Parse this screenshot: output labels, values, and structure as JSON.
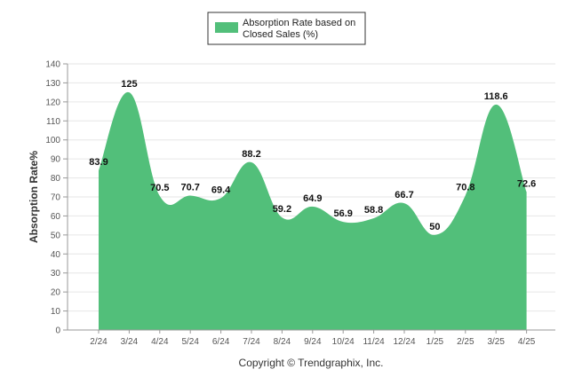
{
  "chart_data": {
    "type": "area",
    "categories": [
      "2/24",
      "3/24",
      "4/24",
      "5/24",
      "6/24",
      "7/24",
      "8/24",
      "9/24",
      "10/24",
      "11/24",
      "12/24",
      "1/25",
      "2/25",
      "3/25",
      "4/25"
    ],
    "series": [
      {
        "name": "Absorption Rate based on Closed Sales (%)",
        "values": [
          83.9,
          125,
          70.5,
          70.7,
          69.4,
          88.2,
          59.2,
          64.9,
          56.9,
          58.8,
          66.7,
          50,
          70.8,
          118.6,
          72.6
        ],
        "labels": [
          "83.9",
          "125",
          "70.5",
          "70.7",
          "69.4",
          "88.2",
          "59.2",
          "64.9",
          "56.9",
          "58.8",
          "66.7",
          "50",
          "70.8",
          "118.6",
          "72.6"
        ]
      }
    ],
    "legend_lines": [
      "Absorption Rate based on",
      "Closed Sales (%)"
    ],
    "ylabel": "Absorption Rate%",
    "ylim": [
      0,
      140
    ],
    "yticks": [
      0,
      10,
      20,
      30,
      40,
      50,
      60,
      70,
      80,
      90,
      100,
      110,
      120,
      130,
      140
    ],
    "grid": true,
    "legend_position": "top",
    "colors": {
      "area": "#52bf7a",
      "grid": "#e6e6e6",
      "axis": "#999999"
    }
  },
  "footer": {
    "copyright": "Copyright © Trendgraphix, Inc."
  }
}
